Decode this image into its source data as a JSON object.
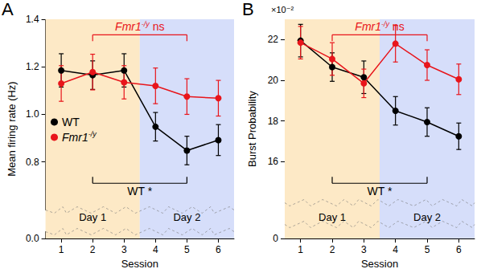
{
  "chart_data": [
    {
      "type": "line",
      "panel_label": "A",
      "x_label": "Session",
      "y_label": "Mean firing rate (Hz)",
      "xlim": [
        0.5,
        6.5
      ],
      "xticks": [
        1,
        2,
        3,
        4,
        5,
        6
      ],
      "ylim": [
        0,
        1.4
      ],
      "yticks": [
        {
          "value": 0,
          "label": "0.0"
        },
        0.8,
        {
          "value": 1,
          "label": "1.0"
        },
        1.2,
        1.4
      ],
      "grid": false,
      "legend": "left",
      "marker": "circle",
      "x": [
        1,
        2,
        3,
        4,
        5,
        6
      ],
      "series": [
        {
          "name": "WT",
          "color": "#000000",
          "values": [
            1.185,
            1.165,
            1.185,
            0.948,
            0.848,
            0.892
          ],
          "errors": [
            0.07,
            0.06,
            0.07,
            0.06,
            0.06,
            0.065
          ]
        },
        {
          "name": "Fmr1-/y",
          "color": "#e8151b",
          "values": [
            1.13,
            1.178,
            1.135,
            1.12,
            1.075,
            1.068
          ],
          "errors": [
            0.075,
            0.075,
            0.07,
            0.075,
            0.075,
            0.075
          ]
        }
      ],
      "regions": [
        {
          "label": "Day 1",
          "from": 0.5,
          "to": 3.5,
          "color": "#fde9c6"
        },
        {
          "label": "Day 2",
          "from": 3.5,
          "to": 6.5,
          "color": "#d6defa"
        }
      ],
      "annotations": [
        {
          "text": "Fmr1-/y ns",
          "from": 2,
          "to": 5,
          "color": "#e8151b"
        },
        {
          "text": "WT *",
          "from": 2,
          "to": 5,
          "color": "#000000"
        }
      ]
    },
    {
      "type": "line",
      "panel_label": "B",
      "x_label": "Session",
      "y_label": "Burst Probability",
      "y_unit_label": "×10⁻²",
      "xlim": [
        0.5,
        6.5
      ],
      "xticks": [
        1,
        2,
        3,
        4,
        5,
        6
      ],
      "ylim": [
        0,
        23
      ],
      "yticks": [
        0,
        16,
        18,
        20,
        22
      ],
      "grid": false,
      "legend": false,
      "marker": "circle",
      "x": [
        1,
        2,
        3,
        4,
        5,
        6
      ],
      "series": [
        {
          "name": "WT",
          "color": "#000000",
          "values": [
            21.95,
            20.65,
            20.15,
            18.5,
            17.95,
            17.25
          ],
          "errors": [
            0.8,
            0.7,
            0.8,
            0.7,
            0.7,
            0.65
          ]
        },
        {
          "name": "Fmr1-/y",
          "color": "#e8151b",
          "values": [
            21.85,
            21.05,
            19.85,
            21.8,
            20.75,
            20.05
          ],
          "errors": [
            0.8,
            0.8,
            0.7,
            0.9,
            0.75,
            0.75
          ]
        }
      ],
      "regions": [
        {
          "label": "Day 1",
          "from": 0.5,
          "to": 3.5,
          "color": "#fde9c6"
        },
        {
          "label": "Day 2",
          "from": 3.5,
          "to": 6.5,
          "color": "#d6defa"
        }
      ],
      "annotations": [
        {
          "text": "Fmr1-/y ns",
          "from": 2,
          "to": 5,
          "color": "#e8151b"
        },
        {
          "text": "WT *",
          "from": 2,
          "to": 5,
          "color": "#000000"
        }
      ]
    }
  ]
}
